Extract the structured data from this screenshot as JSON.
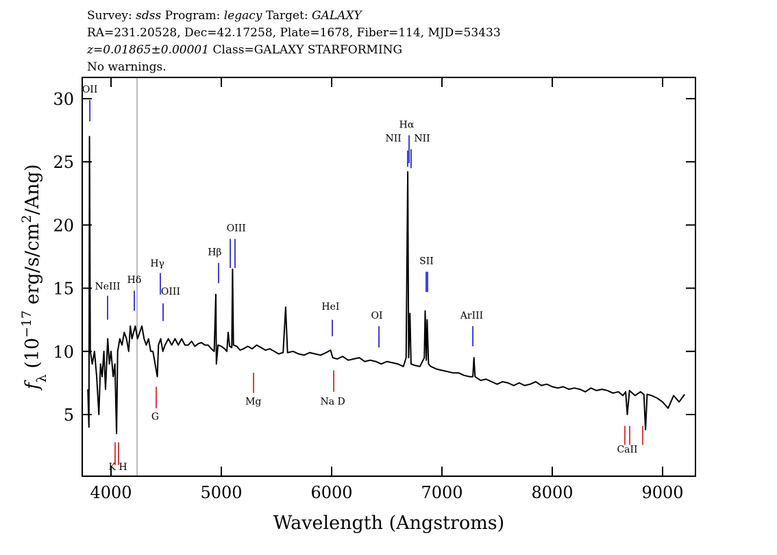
{
  "chart_data": {
    "type": "line",
    "header": [
      [
        {
          "text": "Survey: "
        },
        {
          "text": "sdss",
          "italic": true
        },
        {
          "text": " Program: "
        },
        {
          "text": "legacy",
          "italic": true
        },
        {
          "text": " Target: "
        },
        {
          "text": "GALAXY",
          "italic": true
        }
      ],
      [
        {
          "text": "RA=231.20528, Dec=42.17258, Plate=1678, Fiber=114, MJD=53433"
        }
      ],
      [
        {
          "text": "z=0.01865±0.00001",
          "italic": true
        },
        {
          "text": " Class=GALAXY STARFORMING"
        }
      ],
      [
        {
          "text": "No warnings."
        }
      ]
    ],
    "xlabel": "Wavelength (Angstroms)",
    "ylabel": [
      {
        "text": "f",
        "italic": true
      },
      {
        "text": "λ",
        "sub": true
      },
      {
        "text": " (10"
      },
      {
        "text": "−17",
        "sup": true
      },
      {
        "text": " erg/s/cm"
      },
      {
        "text": "2",
        "sup": true
      },
      {
        "text": "/Ang)"
      }
    ],
    "xlim": [
      3739,
      9298
    ],
    "ylim": [
      0.12,
      31.68
    ],
    "xticks": [
      4000,
      5000,
      6000,
      7000,
      8000,
      9000
    ],
    "yticks": [
      5,
      10,
      15,
      20,
      25,
      30
    ],
    "color": "#000000",
    "marker_line": {
      "x": 4236,
      "color": "#bbbbbb"
    },
    "x": [
      3790,
      3800,
      3805,
      3812,
      3830,
      3850,
      3870,
      3890,
      3905,
      3920,
      3935,
      3950,
      3970,
      3985,
      4000,
      4020,
      4035,
      4050,
      4060,
      4080,
      4100,
      4120,
      4140,
      4160,
      4175,
      4190,
      4205,
      4220,
      4240,
      4260,
      4280,
      4300,
      4320,
      4340,
      4360,
      4380,
      4400,
      4420,
      4430,
      4450,
      4470,
      4490,
      4520,
      4550,
      4580,
      4610,
      4640,
      4670,
      4700,
      4730,
      4760,
      4790,
      4820,
      4850,
      4880,
      4910,
      4935,
      4950,
      4955,
      4970,
      5000,
      5030,
      5050,
      5062,
      5075,
      5095,
      5102,
      5110,
      5140,
      5170,
      5200,
      5240,
      5280,
      5320,
      5360,
      5400,
      5440,
      5480,
      5520,
      5560,
      5583,
      5600,
      5650,
      5700,
      5750,
      5800,
      5850,
      5900,
      5950,
      5990,
      6010,
      6050,
      6100,
      6150,
      6200,
      6250,
      6300,
      6350,
      6400,
      6450,
      6500,
      6550,
      6600,
      6650,
      6675,
      6690,
      6698,
      6710,
      6720,
      6750,
      6800,
      6840,
      6848,
      6858,
      6866,
      6878,
      6900,
      6950,
      7000,
      7050,
      7100,
      7150,
      7200,
      7250,
      7280,
      7290,
      7300,
      7350,
      7400,
      7450,
      7500,
      7550,
      7600,
      7650,
      7700,
      7750,
      7800,
      7850,
      7900,
      7950,
      8000,
      8050,
      8100,
      8150,
      8200,
      8250,
      8300,
      8350,
      8400,
      8450,
      8500,
      8550,
      8600,
      8640,
      8665,
      8680,
      8700,
      8750,
      8800,
      8830,
      8845,
      8860,
      8900,
      8950,
      9000,
      9050,
      9100,
      9150,
      9200
    ],
    "values": [
      7,
      4,
      27,
      10,
      9,
      10,
      8,
      5,
      9,
      8,
      10,
      7,
      11,
      9,
      10,
      8,
      9,
      3.5,
      10,
      11,
      10.5,
      11.5,
      11,
      10,
      12,
      11,
      11.5,
      12,
      11,
      11.5,
      12,
      11,
      10.5,
      11,
      10,
      10,
      9,
      8,
      10.5,
      11,
      10,
      10.5,
      11,
      10.5,
      11,
      10.5,
      11,
      10.5,
      10.5,
      10.8,
      10.4,
      10.6,
      10.7,
      10.5,
      10.5,
      10.2,
      10,
      14.5,
      9,
      10.5,
      10.4,
      10.2,
      10,
      11.5,
      10.4,
      10.3,
      16.5,
      10.5,
      10.4,
      10.1,
      10.2,
      10.4,
      10.2,
      10.5,
      10.3,
      10.1,
      10.2,
      10,
      9.8,
      9.9,
      13.5,
      9.9,
      10,
      9.8,
      9.7,
      9.9,
      9.8,
      9.7,
      9.9,
      10.1,
      9.5,
      9.4,
      9.6,
      9.3,
      9.4,
      9.5,
      9.2,
      9.3,
      9.2,
      9,
      9.2,
      9.1,
      9,
      8.8,
      9.5,
      24.2,
      9.5,
      13,
      9,
      8.9,
      8.8,
      9.5,
      13.2,
      9.3,
      12.5,
      9,
      8.8,
      8.6,
      8.5,
      8.4,
      8.3,
      8.3,
      8.1,
      8,
      8,
      9.5,
      8,
      7.7,
      7.8,
      7.6,
      7.4,
      7.6,
      7.5,
      7.3,
      7.5,
      7.3,
      7.4,
      7.6,
      7.3,
      7.4,
      7.2,
      7.1,
      7.2,
      7,
      7.1,
      7,
      6.8,
      7.1,
      6.9,
      7,
      6.9,
      6.7,
      6.8,
      6.5,
      6.8,
      5,
      6.9,
      6.5,
      6.8,
      6.6,
      3.8,
      6.6,
      6.5,
      6.3,
      6,
      5.5,
      6.5,
      6,
      6.6
    ],
    "annotations": [
      {
        "label": "OII",
        "x": [
          3808
        ],
        "y0": 28.2,
        "y1": 29.9,
        "label_x": 3808,
        "label_y": 30.5,
        "color": "#0000cc"
      },
      {
        "label": "NeIII",
        "x": [
          3969
        ],
        "y0": 12.5,
        "y1": 14.4,
        "label_x": 3969,
        "label_y": 14.9,
        "color": "#0000cc"
      },
      {
        "label": "Hδ",
        "x": [
          4211
        ],
        "y0": 13.2,
        "y1": 14.8,
        "label_x": 4211,
        "label_y": 15.4,
        "color": "#0000cc"
      },
      {
        "label": "Hγ",
        "x": [
          4447
        ],
        "y0": 14.5,
        "y1": 16.2,
        "label_x": 4420,
        "label_y": 16.7,
        "color": "#0000cc"
      },
      {
        "label": "OIII",
        "x": [
          4472
        ],
        "y0": 12.4,
        "y1": 13.8,
        "label_x": 4540,
        "label_y": 14.5,
        "color": "#0000cc"
      },
      {
        "label": "Hβ",
        "x": [
          4975
        ],
        "y0": 15.4,
        "y1": 17.0,
        "label_x": 4940,
        "label_y": 17.6,
        "color": "#0000cc"
      },
      {
        "label": "OIII",
        "x": [
          5081,
          5124
        ],
        "y0": 16.6,
        "y1": 18.9,
        "label_x": 5135,
        "label_y": 19.5,
        "color": "#0000cc"
      },
      {
        "label": "HeI",
        "x": [
          6006
        ],
        "y0": 11.2,
        "y1": 12.5,
        "label_x": 5990,
        "label_y": 13.3,
        "color": "#0000cc"
      },
      {
        "label": "OI",
        "x": [
          6429
        ],
        "y0": 10.3,
        "y1": 12.0,
        "label_x": 6410,
        "label_y": 12.6,
        "color": "#0000cc"
      },
      {
        "label": "NII",
        "x": [
          6689
        ],
        "y0": 24.6,
        "y1": 25.9,
        "label_x": 6560,
        "label_y": 26.6,
        "color": "#0000cc"
      },
      {
        "label": "Hα",
        "x": [
          6702
        ],
        "y0": 24.9,
        "y1": 27.1,
        "label_x": 6680,
        "label_y": 27.7,
        "color": "#0000cc"
      },
      {
        "label": "NII",
        "x": [
          6720
        ],
        "y0": 24.5,
        "y1": 26.0,
        "label_x": 6820,
        "label_y": 26.6,
        "color": "#0000cc"
      },
      {
        "label": "SII",
        "x": [
          6857,
          6870
        ],
        "y0": 14.7,
        "y1": 16.3,
        "label_x": 6860,
        "label_y": 16.9,
        "color": "#0000cc"
      },
      {
        "label": "ArIII",
        "x": [
          7280
        ],
        "y0": 10.4,
        "y1": 12.0,
        "label_x": 7270,
        "label_y": 12.6,
        "color": "#0000cc"
      },
      {
        "label": "K H",
        "x": [
          4037,
          4068
        ],
        "y0": 1.0,
        "y1": 2.8,
        "label_x": 4062,
        "label_y": 0.6,
        "color": "#cc0000"
      },
      {
        "label": "G",
        "x": [
          4410
        ],
        "y0": 5.5,
        "y1": 7.2,
        "label_x": 4400,
        "label_y": 4.6,
        "color": "#cc0000"
      },
      {
        "label": "Mg",
        "x": [
          5292
        ],
        "y0": 6.7,
        "y1": 8.3,
        "label_x": 5290,
        "label_y": 5.8,
        "color": "#cc0000"
      },
      {
        "label": "Na D",
        "x": [
          6019
        ],
        "y0": 6.8,
        "y1": 8.5,
        "label_x": 6010,
        "label_y": 5.8,
        "color": "#cc0000"
      },
      {
        "label": "CaII",
        "x": [
          8658,
          8702,
          8820
        ],
        "y0": 2.6,
        "y1": 4.1,
        "label_x": 8680,
        "label_y": 2.0,
        "color": "#cc0000"
      }
    ]
  }
}
